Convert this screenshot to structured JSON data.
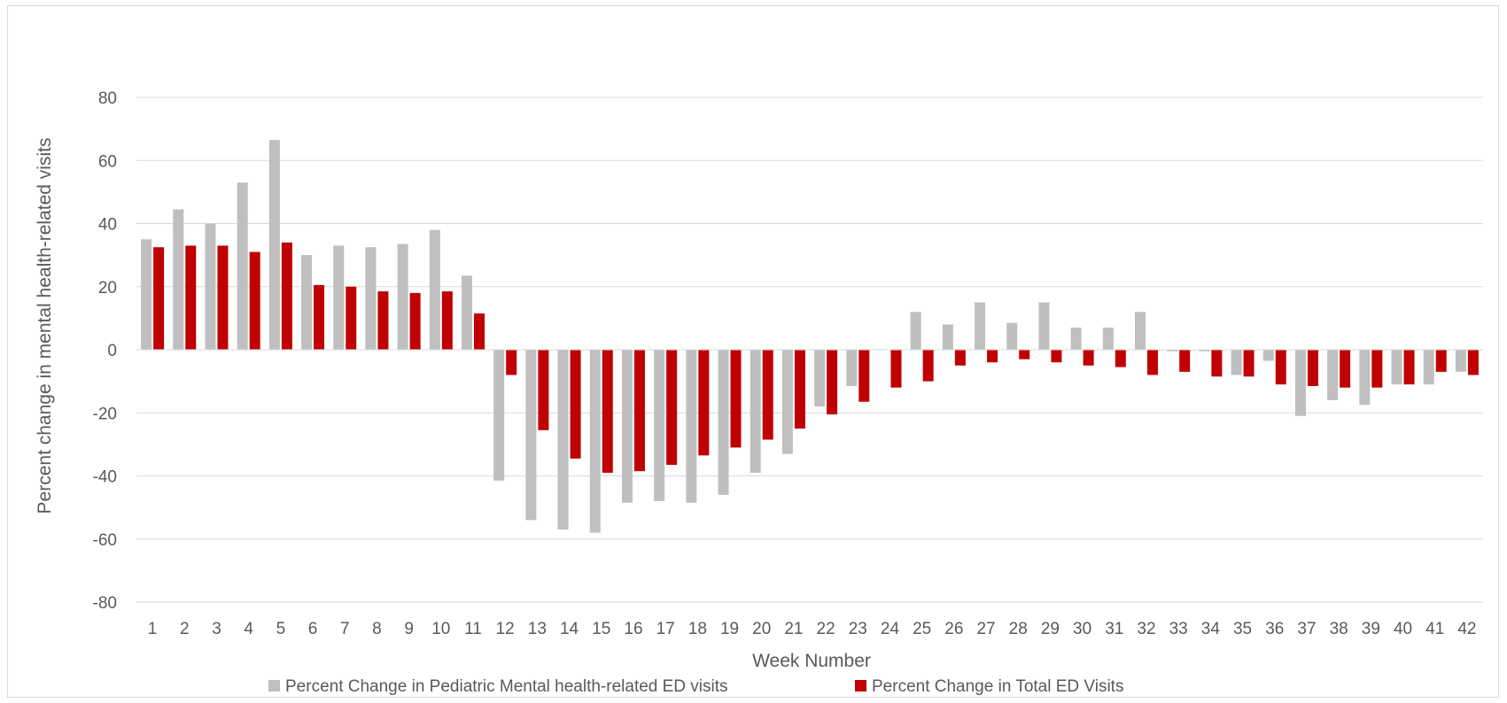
{
  "chart_data": {
    "type": "bar",
    "title": "",
    "xlabel": "Week Number",
    "ylabel": "Percent change in mental health-related visits",
    "ylim": [
      -80,
      80
    ],
    "yticks": [
      -80,
      -60,
      -40,
      -20,
      0,
      20,
      40,
      60,
      80
    ],
    "grid": true,
    "legend_position": "bottom",
    "categories": [
      "1",
      "2",
      "3",
      "4",
      "5",
      "6",
      "7",
      "8",
      "9",
      "10",
      "11",
      "12",
      "13",
      "14",
      "15",
      "16",
      "17",
      "18",
      "19",
      "20",
      "21",
      "22",
      "23",
      "24",
      "25",
      "26",
      "27",
      "28",
      "29",
      "30",
      "31",
      "32",
      "33",
      "34",
      "35",
      "36",
      "37",
      "38",
      "39",
      "40",
      "41",
      "42"
    ],
    "series": [
      {
        "name": "Percent Change in Pediatric Mental health-related ED visits",
        "color": "#bfbfbf",
        "values": [
          35,
          44.5,
          40,
          53,
          66.5,
          30,
          33,
          32.5,
          33.5,
          38,
          23.5,
          -41.5,
          -54,
          -57,
          -58,
          -48.5,
          -48,
          -48.5,
          -46,
          -39,
          -33,
          -18,
          -11.5,
          0,
          12,
          8,
          15,
          8.5,
          15,
          7,
          7,
          12,
          -0.5,
          -0.5,
          -8,
          -3.5,
          -21,
          -16,
          -17.5,
          -11,
          -11,
          -7
        ]
      },
      {
        "name": "Percent Change in Total ED Visits",
        "color": "#c00000",
        "values": [
          32.5,
          33,
          33,
          31,
          34,
          20.5,
          20,
          18.5,
          18,
          18.5,
          11.5,
          -8,
          -25.5,
          -34.5,
          -39,
          -38.5,
          -36.5,
          -33.5,
          -31,
          -28.5,
          -25,
          -20.5,
          -16.5,
          -12,
          -10,
          -5,
          -4,
          -3,
          -4,
          -5,
          -5.5,
          -8,
          -7,
          -8.5,
          -8.5,
          -11,
          -11.5,
          -12,
          -12,
          -11,
          -7,
          -8
        ]
      }
    ]
  }
}
